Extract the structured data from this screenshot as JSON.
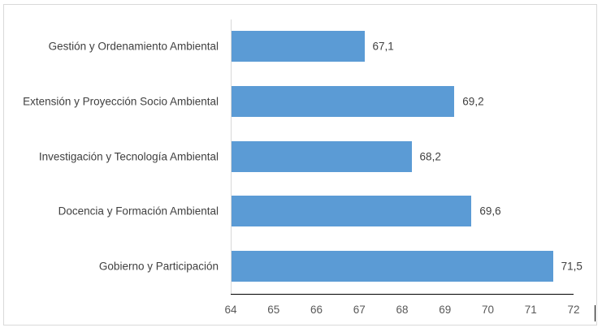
{
  "chart_data": {
    "type": "bar",
    "orientation": "horizontal",
    "title": "",
    "xlabel": "",
    "ylabel": "",
    "categories": [
      "Gestión y Ordenamiento Ambiental",
      "Extensión y Proyección Socio Ambiental",
      "Investigación y Tecnología Ambiental",
      "Docencia y Formación Ambiental",
      "Gobierno y Participación"
    ],
    "values": [
      67.1,
      69.2,
      68.2,
      69.6,
      71.5
    ],
    "value_labels": [
      "67,1",
      "69,2",
      "68,2",
      "69,6",
      "71,5"
    ],
    "xlim": [
      64,
      72
    ],
    "x_ticks": [
      "64",
      "65",
      "66",
      "67",
      "68",
      "69",
      "70",
      "71",
      "72"
    ],
    "grid": false,
    "legend": null,
    "bar_color": "#5b9bd5"
  }
}
